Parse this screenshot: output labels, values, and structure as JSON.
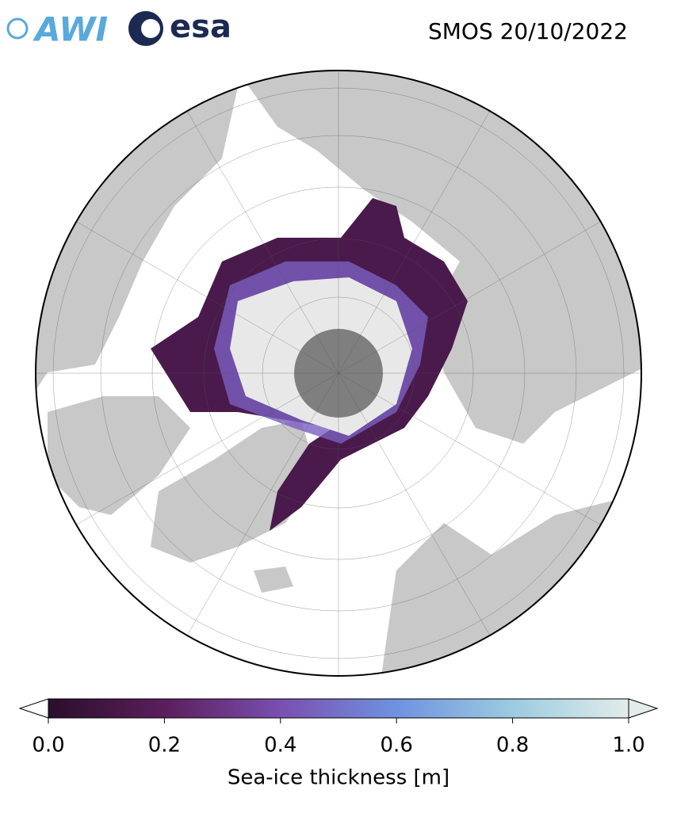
{
  "header": {
    "title": "SMOS 20/10/2022",
    "logos": [
      "AWI",
      "esa"
    ]
  },
  "colorbar": {
    "label": "Sea-ice thickness [m]",
    "lim": [
      0,
      1
    ],
    "ticks": [
      {
        "value": 0,
        "label": "0.0"
      },
      {
        "value": 0.2,
        "label": "0.2"
      },
      {
        "value": 0.4,
        "label": "0.4"
      },
      {
        "value": 0.6,
        "label": "0.6"
      },
      {
        "value": 0.8,
        "label": "0.8"
      },
      {
        "value": 1,
        "label": "1.0"
      }
    ]
  }
}
